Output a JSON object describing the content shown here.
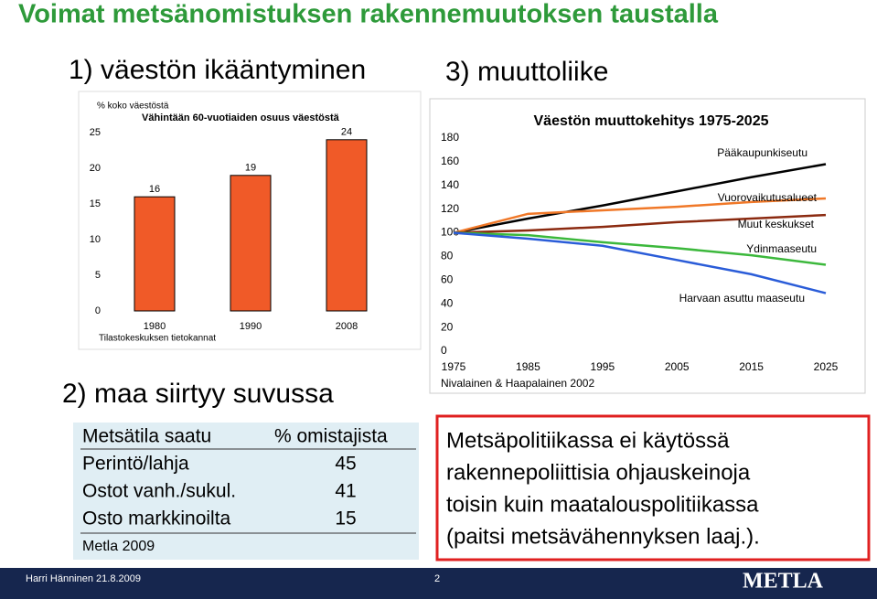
{
  "title": "Voimat metsänomistuksen rakennemuutoksen taustalla",
  "sections": [
    "1) väestön ikääntyminen",
    "2) maa siirtyy suvussa",
    "3) muuttoliike"
  ],
  "chart_data": [
    {
      "type": "bar",
      "title": "Vähintään 60-vuotiaiden osuus väestöstä",
      "y_label": "% koko väestöstä",
      "categories": [
        "1980",
        "1990",
        "2008"
      ],
      "values": [
        16,
        19,
        24
      ],
      "color": "#f05a28",
      "ylim": [
        0,
        25
      ],
      "yticks": [
        0,
        5,
        10,
        15,
        20,
        25
      ],
      "source": "Tilastokeskuksen tietokannat"
    },
    {
      "type": "line",
      "title": "Väestön muuttokehitys 1975-2025",
      "x": [
        1975,
        1985,
        1995,
        2005,
        2015,
        2025
      ],
      "xlim": [
        1975,
        2025
      ],
      "xticks": [
        1975,
        1985,
        1995,
        2005,
        2015,
        2025
      ],
      "ylim": [
        0,
        180
      ],
      "yticks": [
        0,
        20,
        40,
        60,
        80,
        100,
        120,
        140,
        160,
        180
      ],
      "series": [
        {
          "name": "Pääkaupunkiseutu",
          "color": "#000000",
          "values": [
            100,
            112,
            123,
            135,
            147,
            158
          ]
        },
        {
          "name": "Vuorovaikutusalueet",
          "color": "#f07828",
          "values": [
            100,
            116,
            119,
            122,
            126,
            129
          ]
        },
        {
          "name": "Muut keskukset",
          "color": "#8b2a10",
          "values": [
            100,
            102,
            105,
            109,
            112,
            115
          ]
        },
        {
          "name": "Ydinmaaseutu",
          "color": "#3cb83c",
          "values": [
            100,
            98,
            92,
            87,
            81,
            73
          ]
        },
        {
          "name": "Harvaan asuttu maaseutu",
          "color": "#2a5cd8",
          "values": [
            100,
            95,
            89,
            77,
            65,
            49
          ]
        }
      ],
      "source": "Nivalainen & Haapalainen 2002"
    }
  ],
  "table": {
    "header": [
      "Metsätila saatu",
      "% omistajista"
    ],
    "rows": [
      [
        "Perintö/lahja",
        45
      ],
      [
        "Ostot vanh./sukul.",
        41
      ],
      [
        "Osto markkinoilta",
        15
      ]
    ],
    "source": "Metla 2009"
  },
  "callout": [
    "Metsäpolitiikassa ei käytössä",
    "rakennepoliittisia ohjauskeinoja",
    "toisin kuin maatalouspolitiikassa",
    "(paitsi metsävähennyksen laaj.)."
  ],
  "footer": {
    "author": "Harri Hänninen 21.8.2009",
    "page": "2",
    "logo": "METLA"
  }
}
